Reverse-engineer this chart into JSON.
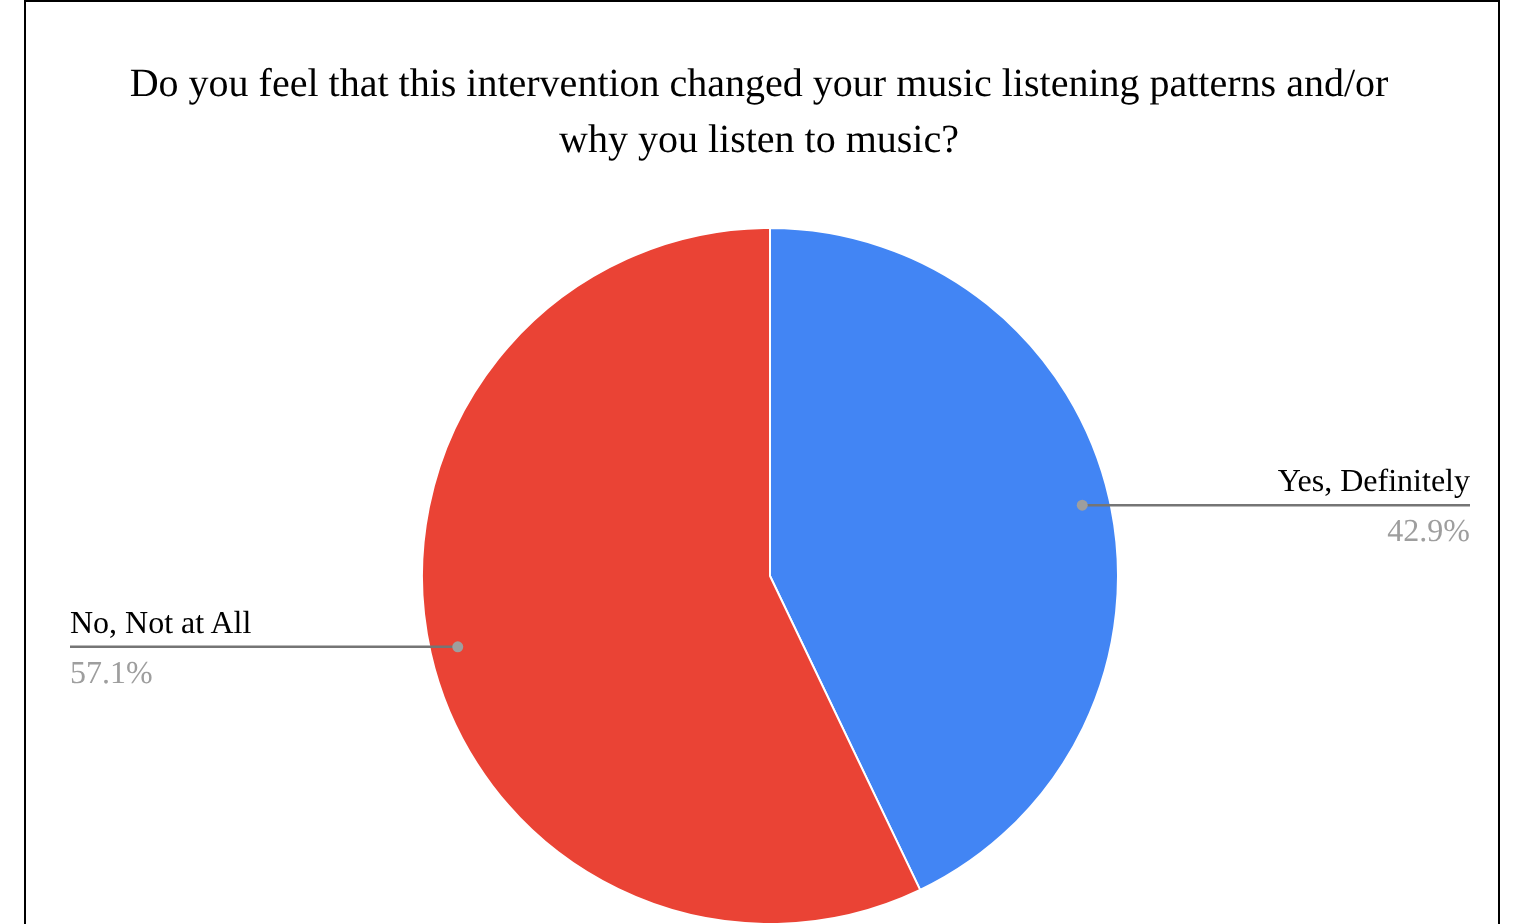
{
  "chart_data": {
    "type": "pie",
    "title": "Do you feel that this intervention changed your music listening patterns and/or why you listen to music?",
    "categories": [
      "Yes, Definitely",
      "No, Not at All"
    ],
    "values": [
      42.9,
      57.1
    ],
    "value_labels": [
      "42.9%",
      "57.1%"
    ],
    "colors": [
      "#4285f4",
      "#ea4335"
    ]
  }
}
